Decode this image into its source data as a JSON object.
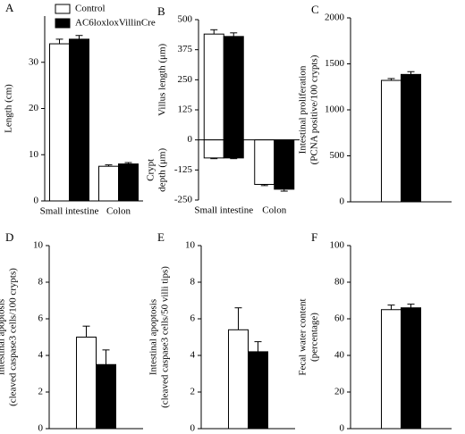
{
  "chart_data": [
    {
      "panel": "A",
      "type": "bar",
      "ylabel": [
        "Length (cm)"
      ],
      "categories": [
        "Small intestine",
        "Colon"
      ],
      "series": [
        {
          "name": "Control",
          "color": "#ffffff",
          "values": [
            34,
            7.5
          ],
          "errors": [
            1,
            0.3
          ]
        },
        {
          "name": "AC6loxloxVillinCre",
          "color": "#000000",
          "values": [
            35,
            8
          ],
          "errors": [
            0.8,
            0.3
          ]
        }
      ],
      "ylim": [
        0,
        40
      ],
      "yticks": [
        0,
        10,
        20,
        30
      ],
      "legend": "upper left"
    },
    {
      "panel": "B",
      "type": "bar",
      "ylabel": [
        "Villus length (μm)"
      ],
      "crypt_label": [
        "Crypt",
        "depth (μm)"
      ],
      "categories": [
        "Small intestine",
        "Colon"
      ],
      "series": [
        {
          "color": "#ffffff",
          "values": [
            440,
            null
          ],
          "errors": [
            18,
            null
          ],
          "crypt_values": [
            -75,
            -185
          ],
          "crypt_errors": [
            3,
            5
          ]
        },
        {
          "color": "#000000",
          "values": [
            430,
            null
          ],
          "errors": [
            15,
            null
          ],
          "crypt_values": [
            -75,
            -205
          ],
          "crypt_errors": [
            3,
            8
          ]
        }
      ],
      "ylim": [
        -250,
        500
      ],
      "yticks": [
        -250,
        -125,
        0,
        125,
        250,
        375,
        500
      ]
    },
    {
      "panel": "C",
      "type": "bar",
      "ylabel": [
        "Intestinal proliferation",
        "(PCNA positive/100 crypts)"
      ],
      "categories": [
        null
      ],
      "series": [
        {
          "color": "#ffffff",
          "values": [
            1320
          ],
          "errors": [
            20
          ]
        },
        {
          "color": "#000000",
          "values": [
            1385
          ],
          "errors": [
            30
          ]
        }
      ],
      "ylim": [
        0,
        2000
      ],
      "yticks": [
        0,
        500,
        1000,
        1500,
        2000
      ]
    },
    {
      "panel": "D",
      "type": "bar",
      "ylabel": [
        "Intestinal apoptosis",
        "(cleaved caspase3 cells/100 crypts)"
      ],
      "categories": [
        null
      ],
      "series": [
        {
          "color": "#ffffff",
          "values": [
            5.0
          ],
          "errors": [
            0.6
          ]
        },
        {
          "color": "#000000",
          "values": [
            3.5
          ],
          "errors": [
            0.8
          ]
        }
      ],
      "ylim": [
        0,
        10
      ],
      "yticks": [
        0,
        2,
        4,
        6,
        8,
        10
      ]
    },
    {
      "panel": "E",
      "type": "bar",
      "ylabel": [
        "Intestinal apoptosis",
        "(cleaved caspase3 cells/50 villi tips)"
      ],
      "categories": [
        null
      ],
      "series": [
        {
          "color": "#ffffff",
          "values": [
            5.4
          ],
          "errors": [
            1.2
          ]
        },
        {
          "color": "#000000",
          "values": [
            4.2
          ],
          "errors": [
            0.55
          ]
        }
      ],
      "ylim": [
        0,
        10
      ],
      "yticks": [
        0,
        2,
        4,
        6,
        8,
        10
      ]
    },
    {
      "panel": "F",
      "type": "bar",
      "ylabel": [
        "Fecal water content",
        "(percentage)"
      ],
      "categories": [
        null
      ],
      "series": [
        {
          "color": "#ffffff",
          "values": [
            65
          ],
          "errors": [
            2.5
          ]
        },
        {
          "color": "#000000",
          "values": [
            66
          ],
          "errors": [
            2
          ]
        }
      ],
      "ylim": [
        0,
        100
      ],
      "yticks": [
        0,
        20,
        40,
        60,
        80,
        100
      ]
    }
  ]
}
